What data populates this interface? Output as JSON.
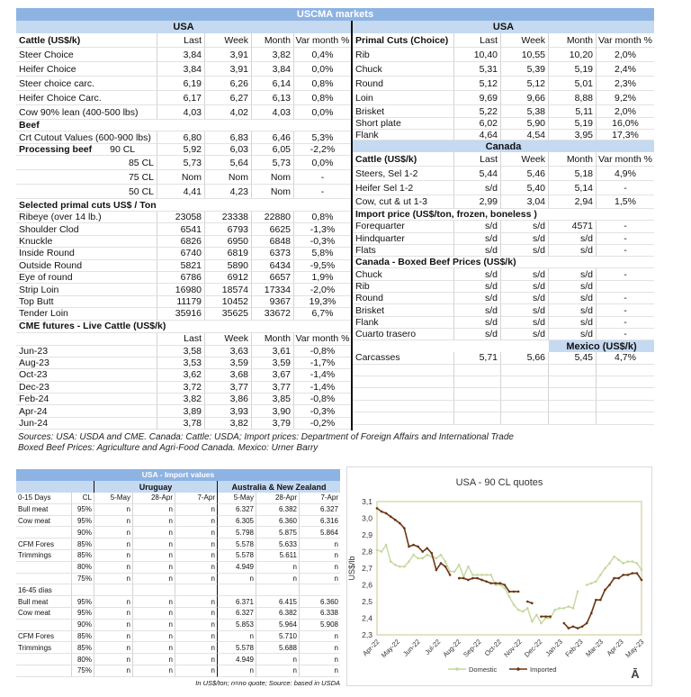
{
  "title": "USCMA markets",
  "usa_left": {
    "region": "USA",
    "columns": [
      "Last",
      "Week",
      "Month",
      "Var month %"
    ],
    "cattle": {
      "title": "Cattle (US$/k)",
      "rows": [
        {
          "label": "Steer Choice",
          "values": [
            "3,84",
            "3,91",
            "3,82",
            "0,4%"
          ]
        },
        {
          "label": "Heifer Choice",
          "values": [
            "3,84",
            "3,91",
            "3,84",
            "0,0%"
          ]
        },
        {
          "label": "Steer choice carc.",
          "values": [
            "6,19",
            "6,26",
            "6,14",
            "0,8%"
          ]
        },
        {
          "label": "Heifer Choice Carc.",
          "values": [
            "6,17",
            "6,27",
            "6,13",
            "0,8%"
          ]
        },
        {
          "label": "Cow 90% lean (400-500 lbs)",
          "values": [
            "4,03",
            "4,02",
            "4,03",
            "0,0%"
          ]
        }
      ]
    },
    "beef": {
      "title": "Beef",
      "rows": [
        {
          "label": "Crt Cutout Values (600-900 lbs)",
          "values": [
            "6,80",
            "6,83",
            "6,46",
            "5,3%"
          ]
        }
      ]
    },
    "processing": {
      "title": "Processing beef",
      "rows": [
        {
          "label": "90 CL",
          "values": [
            "5,92",
            "6,03",
            "6,05",
            "-2,2%"
          ]
        },
        {
          "label": "85 CL",
          "values": [
            "5,73",
            "5,64",
            "5,73",
            "0,0%"
          ]
        },
        {
          "label": "75 CL",
          "values": [
            "Nom",
            "Nom",
            "Nom",
            "-"
          ]
        },
        {
          "label": "50 CL",
          "values": [
            "4,41",
            "4,23",
            "Nom",
            "-"
          ]
        }
      ]
    },
    "primal": {
      "title": "Selected primal cuts US$ / Ton",
      "rows": [
        {
          "label": "Ribeye (over 14 lb.)",
          "values": [
            "23058",
            "23338",
            "22880",
            "0,8%"
          ]
        },
        {
          "label": "Shoulder Clod",
          "values": [
            "6541",
            "6793",
            "6625",
            "-1,3%"
          ]
        },
        {
          "label": "Knuckle",
          "values": [
            "6826",
            "6950",
            "6848",
            "-0,3%"
          ]
        },
        {
          "label": "Inside Round",
          "values": [
            "6740",
            "6819",
            "6373",
            "5,8%"
          ]
        },
        {
          "label": "Outside Round",
          "values": [
            "5821",
            "5890",
            "6434",
            "-9,5%"
          ]
        },
        {
          "label": "Eye of round",
          "values": [
            "6786",
            "6912",
            "6657",
            "1,9%"
          ]
        },
        {
          "label": "Strip Loin",
          "values": [
            "16980",
            "18574",
            "17334",
            "-2,0%"
          ]
        },
        {
          "label": "Top Butt",
          "values": [
            "11179",
            "10452",
            "9367",
            "19,3%"
          ]
        },
        {
          "label": "Tender Loin",
          "values": [
            "35916",
            "35625",
            "33672",
            "6,7%"
          ]
        }
      ]
    },
    "cme": {
      "title": "CME futures - Live Cattle (US$/k)",
      "columns": [
        "Last",
        "Week",
        "Month",
        "Var month %"
      ],
      "rows": [
        {
          "label": "Jun-23",
          "values": [
            "3,58",
            "3,63",
            "3,61",
            "-0,8%"
          ]
        },
        {
          "label": "Aug-23",
          "values": [
            "3,53",
            "3,59",
            "3,59",
            "-1,7%"
          ]
        },
        {
          "label": "Oct-23",
          "values": [
            "3,62",
            "3,68",
            "3,67",
            "-1,4%"
          ]
        },
        {
          "label": "Dec-23",
          "values": [
            "3,72",
            "3,77",
            "3,77",
            "-1,4%"
          ]
        },
        {
          "label": "Feb-24",
          "values": [
            "3,82",
            "3,86",
            "3,85",
            "-0,8%"
          ]
        },
        {
          "label": "Apr-24",
          "values": [
            "3,89",
            "3,93",
            "3,90",
            "-0,3%"
          ]
        },
        {
          "label": "Jun-24",
          "values": [
            "3,78",
            "3,82",
            "3,79",
            "-0,2%"
          ]
        }
      ]
    }
  },
  "right": {
    "usa": {
      "region": "USA",
      "title": "Primal Cuts (Choice)",
      "columns": [
        "Last",
        "Week",
        "Month",
        "Var month %"
      ],
      "rows": [
        {
          "label": "Rib",
          "values": [
            "10,40",
            "10,55",
            "10,20",
            "2,0%"
          ]
        },
        {
          "label": "Chuck",
          "values": [
            "5,31",
            "5,39",
            "5,19",
            "2,4%"
          ]
        },
        {
          "label": "Round",
          "values": [
            "5,12",
            "5,12",
            "5,01",
            "2,3%"
          ]
        },
        {
          "label": "Loin",
          "values": [
            "9,69",
            "9,66",
            "8,88",
            "9,2%"
          ]
        },
        {
          "label": "Brisket",
          "values": [
            "5,22",
            "5,38",
            "5,11",
            "2,0%"
          ]
        },
        {
          "label": "Short plate",
          "values": [
            "6,02",
            "5,90",
            "5,19",
            "16,0%"
          ]
        },
        {
          "label": "Flank",
          "values": [
            "4,64",
            "4,54",
            "3,95",
            "17,3%"
          ]
        }
      ]
    },
    "canada": {
      "region": "Canada",
      "title": "Cattle (US$/k)",
      "columns": [
        "Last",
        "Week",
        "Month",
        "Var month %"
      ],
      "rows": [
        {
          "label": "Steers, Sel 1-2",
          "values": [
            "5,44",
            "5,46",
            "5,18",
            "4,9%"
          ]
        },
        {
          "label": "Heifer Sel 1-2",
          "values": [
            "s/d",
            "5,40",
            "5,14",
            "-"
          ]
        },
        {
          "label": "Cow, cut & ut 1-3",
          "values": [
            "2,99",
            "3,04",
            "2,94",
            "1,5%"
          ]
        }
      ]
    },
    "import": {
      "title": "Import price (US$/ton, frozen, boneless )",
      "rows": [
        {
          "label": "Forequarter",
          "values": [
            "s/d",
            "s/d",
            "4571",
            "-"
          ]
        },
        {
          "label": "Hindquarter",
          "values": [
            "s/d",
            "s/d",
            "s/d",
            "-"
          ]
        },
        {
          "label": "Flats",
          "values": [
            "s/d",
            "s/d",
            "s/d",
            "-"
          ]
        }
      ]
    },
    "boxed": {
      "title": "Canada - Boxed Beef Prices (US$/k)",
      "rows": [
        {
          "label": "Chuck",
          "values": [
            "s/d",
            "s/d",
            "s/d",
            "-"
          ]
        },
        {
          "label": "Rib",
          "values": [
            "s/d",
            "s/d",
            "s/d",
            ""
          ]
        },
        {
          "label": "Round",
          "values": [
            "s/d",
            "s/d",
            "s/d",
            "-"
          ]
        },
        {
          "label": "Brisket",
          "values": [
            "s/d",
            "s/d",
            "s/d",
            "-"
          ]
        },
        {
          "label": "Flank",
          "values": [
            "s/d",
            "s/d",
            "s/d",
            "-"
          ]
        },
        {
          "label": "Cuarto trasero",
          "values": [
            "s/d",
            "s/d",
            "s/d",
            "-"
          ]
        }
      ]
    },
    "mexico": {
      "region": "Mexico (US$/k)",
      "rows": [
        {
          "label": "Carcasses",
          "values": [
            "5,71",
            "5,66",
            "5,45",
            "4,7%"
          ]
        }
      ]
    }
  },
  "sources": {
    "line1": "Sources: USA: USDA and CME. Canada: Cattle: USDA; Import prices: Department of Foreign Affairs and International Trade",
    "line2": "Boxed Beef Prices: Agriculture and Agri-Food Canada. Mexico: Urner Barry"
  },
  "import_values": {
    "title": "USA - Import values",
    "origin_1": "Uruguay",
    "origin_2": "Australia & New Zealand",
    "cl_label": "CL",
    "dates": [
      "5-May",
      "28-Apr",
      "7-Apr",
      "5-May",
      "28-Apr",
      "7-Apr"
    ],
    "groups": [
      {
        "title": "0-15 Days",
        "rows": [
          {
            "label": "Bull meat",
            "cl": "95%",
            "values": [
              "n",
              "n",
              "n",
              "6.327",
              "6.382",
              "6.327"
            ]
          },
          {
            "label": "Cow meat",
            "cl": "95%",
            "values": [
              "n",
              "n",
              "n",
              "6.305",
              "6.360",
              "6.316"
            ]
          },
          {
            "label": "",
            "cl": "90%",
            "values": [
              "n",
              "n",
              "n",
              "5.798",
              "5.875",
              "5.864"
            ]
          },
          {
            "label": "CFM Fores",
            "cl": "85%",
            "values": [
              "n",
              "n",
              "n",
              "5.578",
              "5.633",
              "n"
            ]
          },
          {
            "label": "Trimmings",
            "cl": "85%",
            "values": [
              "n",
              "n",
              "n",
              "5.578",
              "5.611",
              "n"
            ]
          },
          {
            "label": "",
            "cl": "80%",
            "values": [
              "n",
              "n",
              "n",
              "4.949",
              "n",
              "n"
            ]
          },
          {
            "label": "",
            "cl": "75%",
            "values": [
              "n",
              "n",
              "n",
              "n",
              "n",
              "n"
            ]
          }
        ]
      },
      {
        "title": "16-45 días",
        "rows": [
          {
            "label": "Bull meat",
            "cl": "95%",
            "values": [
              "n",
              "n",
              "n",
              "6.371",
              "6.415",
              "6.360"
            ]
          },
          {
            "label": "Cow meat",
            "cl": "95%",
            "values": [
              "n",
              "n",
              "n",
              "6.327",
              "6.382",
              "6.338"
            ]
          },
          {
            "label": "",
            "cl": "90%",
            "values": [
              "n",
              "n",
              "n",
              "5.853",
              "5.964",
              "5.908"
            ]
          },
          {
            "label": "CFM Fores",
            "cl": "85%",
            "values": [
              "n",
              "n",
              "n",
              "n",
              "5.710",
              "n"
            ]
          },
          {
            "label": "Trimmings",
            "cl": "85%",
            "values": [
              "n",
              "n",
              "n",
              "5.578",
              "5.688",
              "n"
            ]
          },
          {
            "label": "",
            "cl": "80%",
            "values": [
              "n",
              "n",
              "n",
              "4.949",
              "n",
              "n"
            ]
          },
          {
            "label": "",
            "cl": "75%",
            "values": [
              "n",
              "n",
              "n",
              "n",
              "n",
              "n"
            ]
          }
        ]
      }
    ],
    "footnote": "In US$/ton; n=no quote; Source: based in USDA"
  },
  "chart_data": {
    "type": "line",
    "title": "USA - 90 CL quotes",
    "ylabel": "US$/lb",
    "xlabel": "",
    "ylim": [
      2.3,
      3.1
    ],
    "y_ticks": [
      "2,3",
      "2,4",
      "2,5",
      "2,6",
      "2,7",
      "2,8",
      "2,9",
      "3,0",
      "3,1"
    ],
    "x_ticks": [
      "Apr-22",
      "May-22",
      "Jun-22",
      "Jul-22",
      "Aug-22",
      "Sep-22",
      "Oct-22",
      "Nov-22",
      "Dec-22",
      "Jan-23",
      "Feb-23",
      "Mar-23",
      "Apr-23",
      "May-23"
    ],
    "grid": false,
    "legend": "bottom",
    "x": [
      "2022-04-01",
      "2022-04-08",
      "2022-04-15",
      "2022-04-22",
      "2022-04-29",
      "2022-05-06",
      "2022-05-13",
      "2022-05-20",
      "2022-05-27",
      "2022-06-03",
      "2022-06-10",
      "2022-06-17",
      "2022-06-24",
      "2022-07-01",
      "2022-07-08",
      "2022-07-15",
      "2022-07-22",
      "2022-07-29",
      "2022-08-05",
      "2022-08-12",
      "2022-08-19",
      "2022-08-26",
      "2022-09-02",
      "2022-09-09",
      "2022-09-16",
      "2022-09-23",
      "2022-09-30",
      "2022-10-07",
      "2022-10-14",
      "2022-10-21",
      "2022-10-28",
      "2022-11-04",
      "2022-11-11",
      "2022-11-18",
      "2022-11-25",
      "2022-12-02",
      "2022-12-09",
      "2022-12-16",
      "2022-12-23",
      "2022-12-30",
      "2023-01-06",
      "2023-01-13",
      "2023-01-20",
      "2023-01-27",
      "2023-02-03",
      "2023-02-10",
      "2023-02-17",
      "2023-02-24",
      "2023-03-03",
      "2023-03-10",
      "2023-03-17",
      "2023-03-24",
      "2023-03-31",
      "2023-04-07",
      "2023-04-14",
      "2023-04-21",
      "2023-04-28",
      "2023-05-05",
      "2023-05-12"
    ],
    "series": [
      {
        "name": "Domestic",
        "color": "#c4d79b",
        "values": [
          2.81,
          2.8,
          2.84,
          2.74,
          2.72,
          2.71,
          2.71,
          2.74,
          2.78,
          2.76,
          2.76,
          2.78,
          2.77,
          2.76,
          2.78,
          2.74,
          2.68,
          2.68,
          2.72,
          2.65,
          2.71,
          2.66,
          2.66,
          2.66,
          2.66,
          2.66,
          2.6,
          2.6,
          2.58,
          2.53,
          2.48,
          2.45,
          2.44,
          2.46,
          2.38,
          2.42,
          2.37,
          2.4,
          2.4,
          2.45,
          2.46,
          2.46,
          2.47,
          2.46,
          2.56,
          null,
          2.6,
          2.61,
          2.62,
          2.66,
          2.7,
          2.73,
          2.77,
          2.75,
          2.73,
          2.74,
          2.74,
          2.73,
          2.69
        ]
      },
      {
        "name": "Imported",
        "color": "#6b3512",
        "values": [
          3.06,
          3.04,
          3.03,
          3.01,
          2.99,
          2.97,
          2.94,
          2.83,
          2.84,
          2.83,
          2.8,
          2.82,
          2.79,
          2.69,
          2.73,
          2.71,
          2.66,
          null,
          2.64,
          2.64,
          2.63,
          2.64,
          2.64,
          2.63,
          2.62,
          2.61,
          2.61,
          2.61,
          2.6,
          2.56,
          2.56,
          2.56,
          null,
          2.5,
          2.49,
          null,
          2.41,
          2.41,
          2.41,
          null,
          null,
          2.37,
          2.34,
          2.35,
          2.34,
          2.35,
          2.37,
          2.43,
          2.51,
          2.51,
          2.57,
          2.6,
          2.64,
          2.64,
          2.66,
          2.66,
          2.67,
          2.67,
          2.63
        ]
      }
    ],
    "corner_glyph": "Ā"
  }
}
